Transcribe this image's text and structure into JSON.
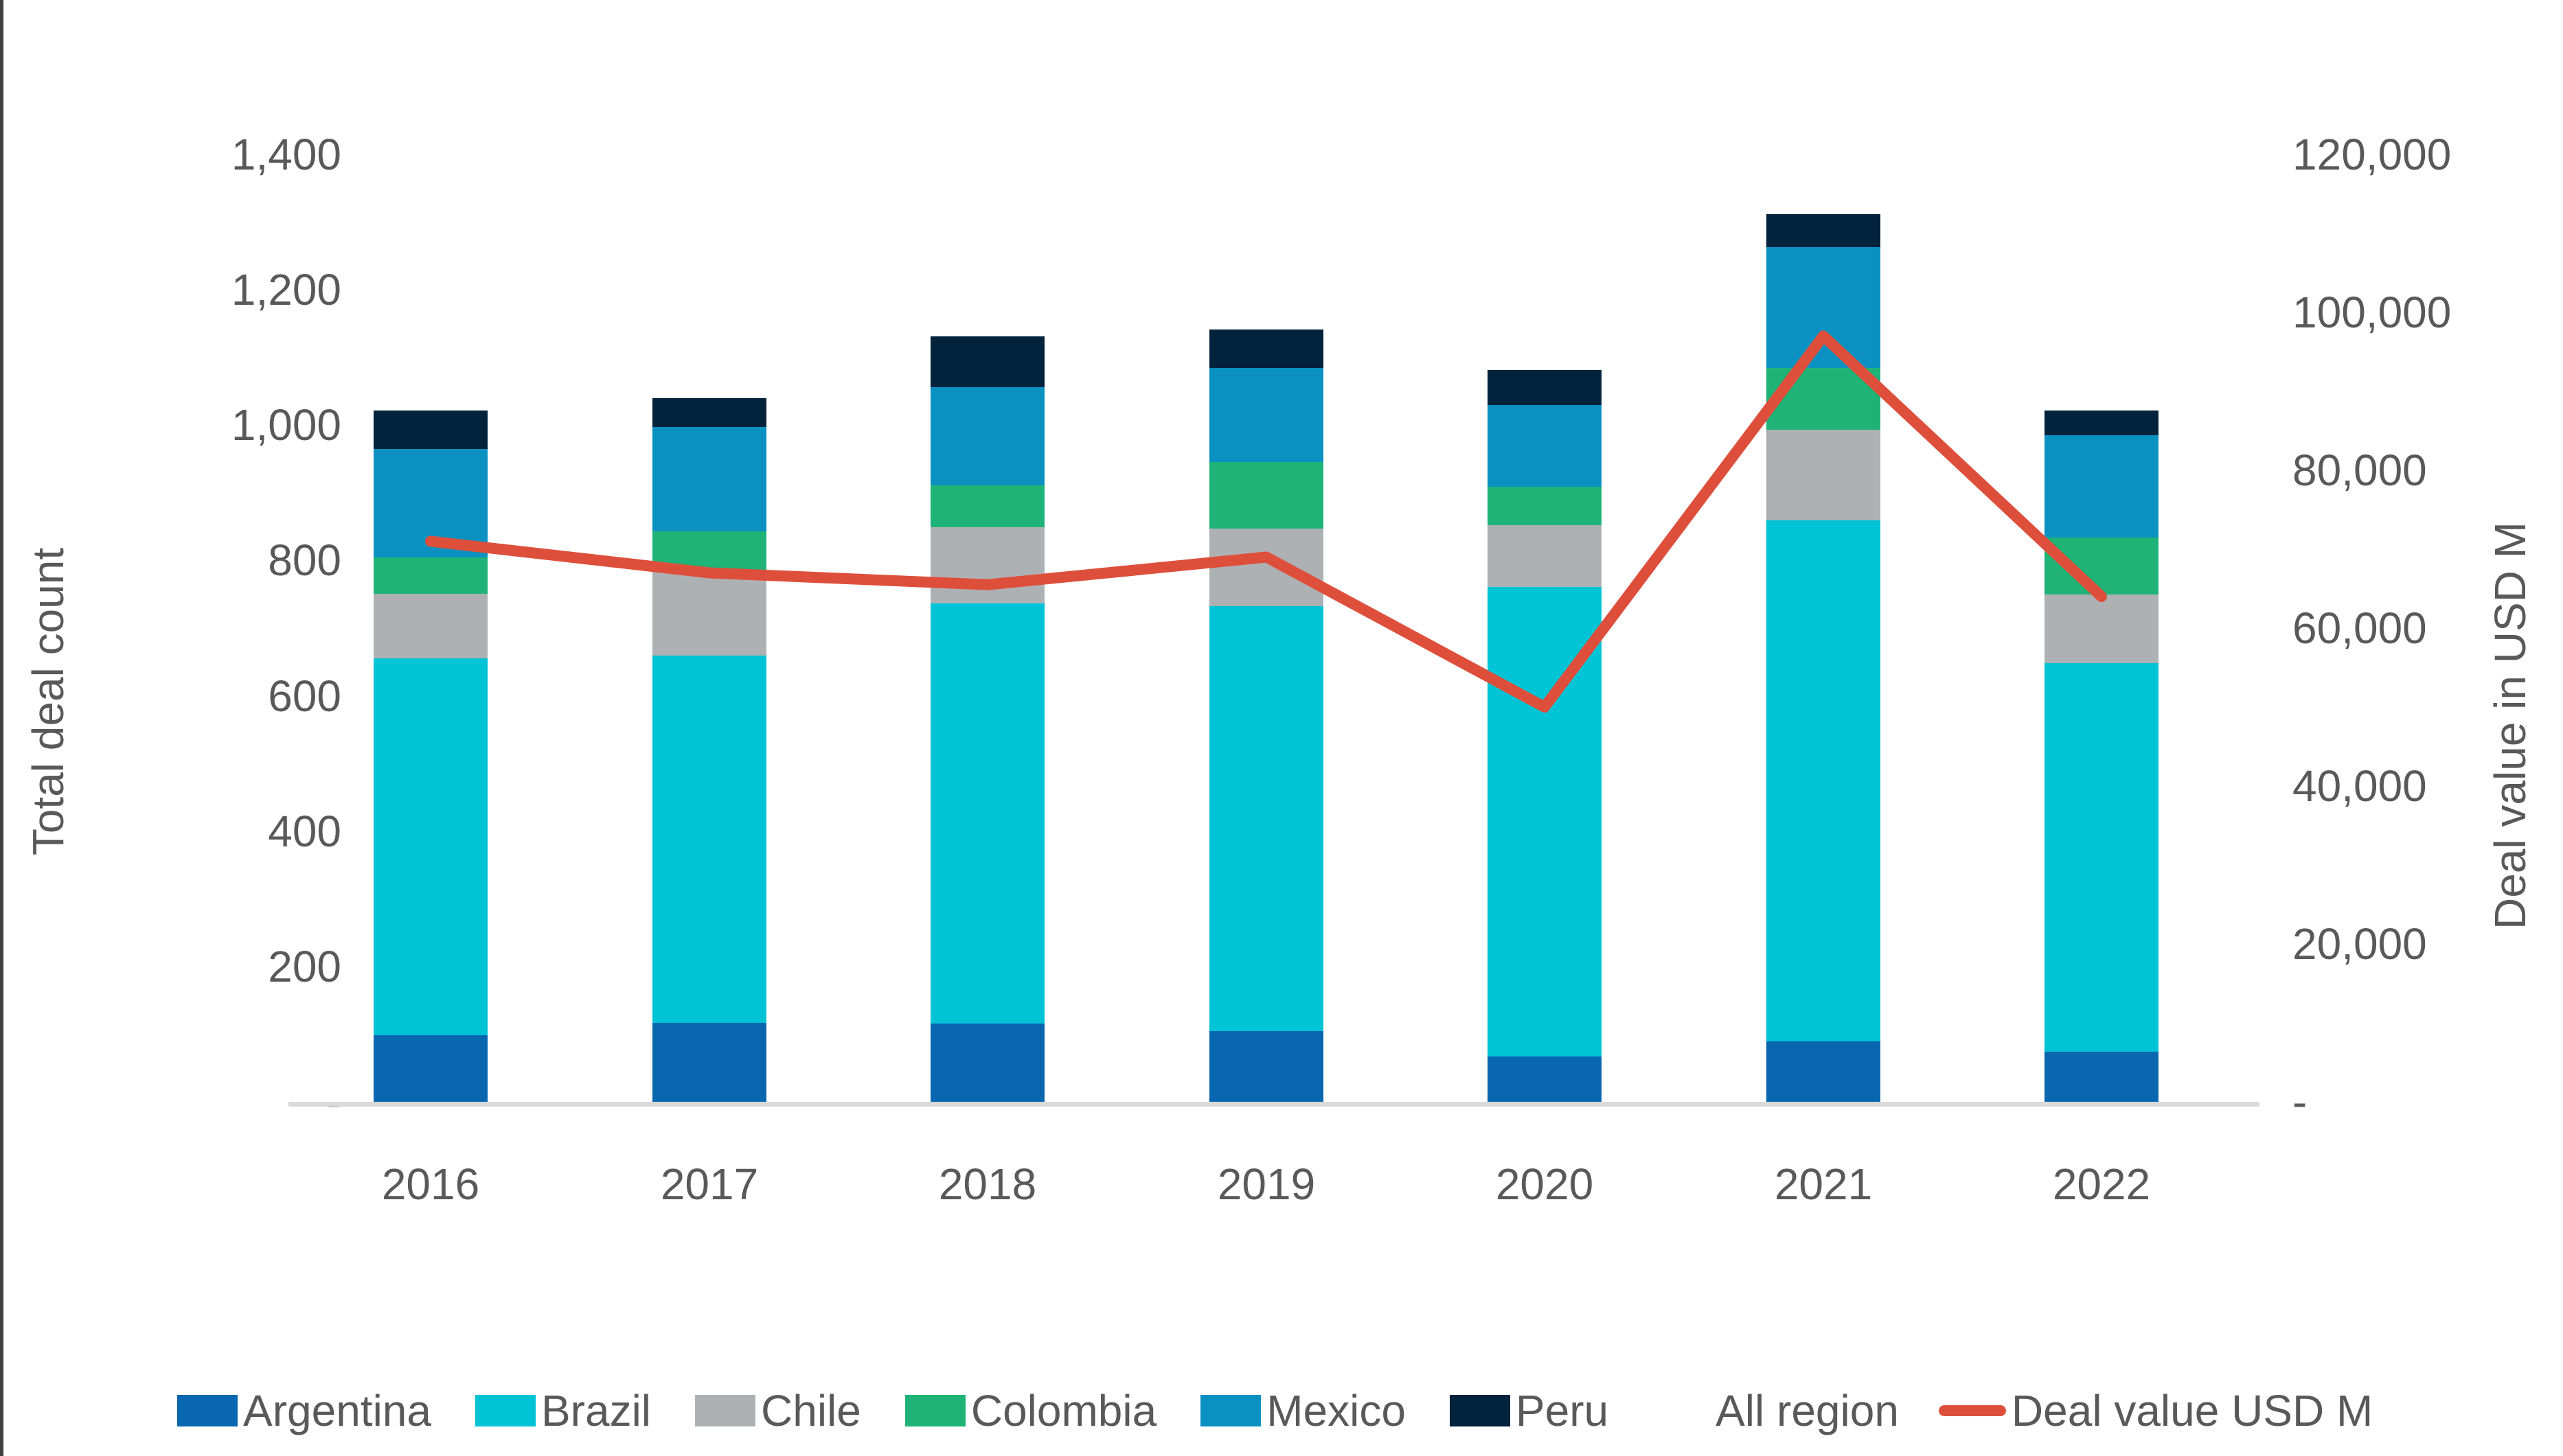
{
  "chart_data": {
    "type": "bar",
    "subtype": "stacked-bar-with-line-combo",
    "title": "",
    "categories": [
      "2016",
      "2017",
      "2018",
      "2019",
      "2020",
      "2021",
      "2022"
    ],
    "series": [
      {
        "name": "Argentina",
        "color": "#0967B0",
        "values": [
          98,
          117,
          116,
          105,
          67,
          89,
          74
        ]
      },
      {
        "name": "Brazil",
        "color": "#00C4D6",
        "values": [
          557,
          542,
          621,
          627,
          694,
          770,
          574
        ]
      },
      {
        "name": "Chile",
        "color": "#AEB1B4",
        "values": [
          96,
          126,
          112,
          115,
          91,
          134,
          102
        ]
      },
      {
        "name": "Colombia",
        "color": "#1FB377",
        "values": [
          54,
          58,
          62,
          99,
          57,
          92,
          84
        ]
      },
      {
        "name": "Mexico",
        "color": "#0A91C2",
        "values": [
          160,
          154,
          145,
          139,
          121,
          178,
          151
        ]
      },
      {
        "name": "Peru",
        "color": "#03223C",
        "values": [
          57,
          43,
          75,
          56,
          52,
          49,
          37
        ]
      }
    ],
    "bar_totals": [
      1022,
      1040,
      1131,
      1141,
      1082,
      1312,
      1022
    ],
    "line_series": {
      "name": "Deal value USD M",
      "color": "#DE4F3B",
      "axis": "right",
      "values": [
        71000,
        67000,
        65500,
        69000,
        50000,
        97000,
        64000
      ]
    },
    "left_axis": {
      "label": "Total deal count",
      "min": 0,
      "max": 1400,
      "tick_step": 200,
      "tick_labels": [
        "-",
        "200",
        "400",
        "600",
        "800",
        "1,000",
        "1,200",
        "1,400"
      ]
    },
    "right_axis": {
      "label": "Deal value in USD M",
      "min": 0,
      "max": 120000,
      "tick_step": 20000,
      "tick_labels": [
        "-",
        "20,000",
        "40,000",
        "60,000",
        "80,000",
        "100,000",
        "120,000"
      ]
    },
    "grid": false,
    "legend_position": "bottom"
  },
  "legend_items": [
    {
      "label": "Argentina",
      "swatch": "square",
      "color": "#0967B0"
    },
    {
      "label": "Brazil",
      "swatch": "square",
      "color": "#00C4D6"
    },
    {
      "label": "Chile",
      "swatch": "square",
      "color": "#AEB1B4"
    },
    {
      "label": "Colombia",
      "swatch": "square",
      "color": "#1FB377"
    },
    {
      "label": "Mexico",
      "swatch": "square",
      "color": "#0A91C2"
    },
    {
      "label": "Peru",
      "swatch": "square",
      "color": "#03223C"
    },
    {
      "label": "All region",
      "swatch": "none"
    },
    {
      "label": "Deal value USD M",
      "swatch": "line",
      "color": "#DE4F3B"
    }
  ]
}
